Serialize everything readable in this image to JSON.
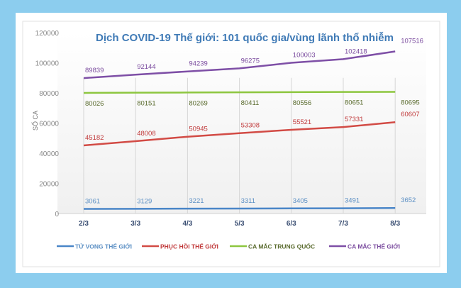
{
  "chart_data": {
    "type": "line",
    "title": "Dịch COVID-19 Thế giới: 101 quốc gia/vùng lãnh thổ nhiễm",
    "xlabel": "",
    "ylabel": "SỐ CA",
    "ylim": [
      0,
      120000
    ],
    "yticks": [
      "0",
      "20000",
      "40000",
      "60000",
      "80000",
      "100000",
      "120000"
    ],
    "categories": [
      "2/3",
      "3/3",
      "4/3",
      "5/3",
      "6/3",
      "7/3",
      "8/3"
    ],
    "grid": "vertical",
    "legend_position": "bottom",
    "series": [
      {
        "name": "TỬ VONG THẾ GIỚI",
        "color": "#4a86c8",
        "label_color": "#5b8fc4",
        "values": [
          3061,
          3129,
          3221,
          3311,
          3405,
          3491,
          3652
        ]
      },
      {
        "name": "PHỤC HỒI THẾ GIỚI",
        "color": "#d24b45",
        "label_color": "#c0393a",
        "values": [
          45182,
          48008,
          50945,
          53308,
          55521,
          57331,
          60607
        ]
      },
      {
        "name": "CA MẮC TRUNG QUỐC",
        "color": "#8dc63f",
        "label_color": "#5a6b2e",
        "values": [
          80026,
          80151,
          80269,
          80411,
          80556,
          80651,
          80695
        ]
      },
      {
        "name": "CA MẮC THẾ GIỚI",
        "color": "#7e4fa6",
        "label_color": "#7a4b9e",
        "values": [
          89839,
          92144,
          94239,
          96275,
          100003,
          102418,
          107516
        ]
      }
    ]
  }
}
